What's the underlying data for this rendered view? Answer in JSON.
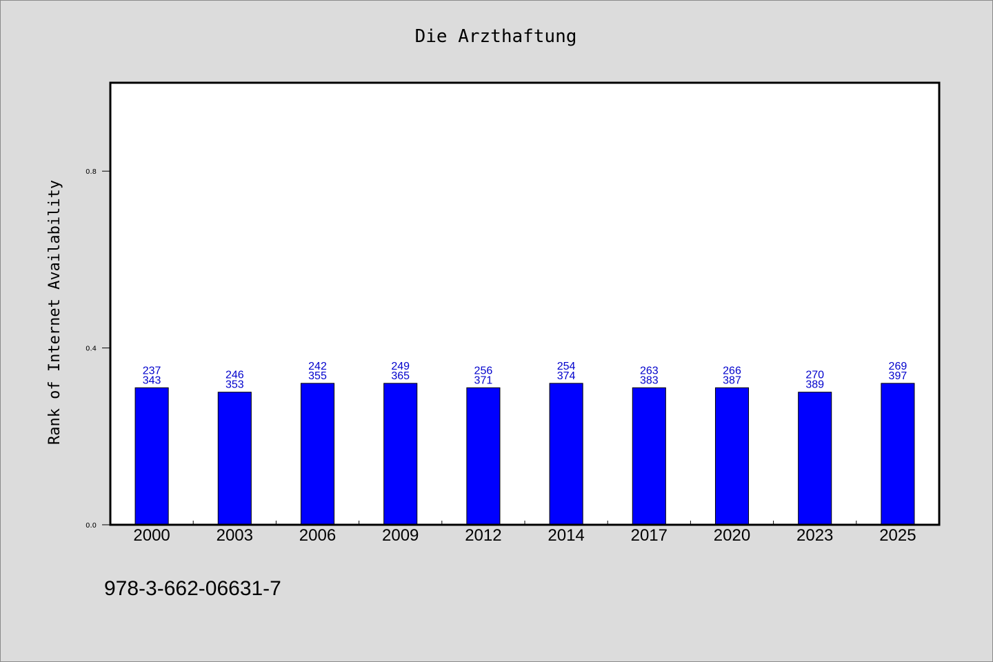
{
  "chart_data": {
    "type": "bar",
    "title": "Die Arzthaftung",
    "xlabel": "",
    "ylabel": "Rank of Internet Availability",
    "categories": [
      "2000",
      "2003",
      "2006",
      "2009",
      "2012",
      "2014",
      "2017",
      "2020",
      "2023",
      "2025"
    ],
    "series": [
      {
        "values": [
          0.31,
          0.3,
          0.32,
          0.32,
          0.31,
          0.32,
          0.31,
          0.31,
          0.3,
          0.32
        ]
      }
    ],
    "labels_top": [
      "237",
      "246",
      "242",
      "249",
      "256",
      "254",
      "263",
      "266",
      "270",
      "269"
    ],
    "labels_bottom": [
      "343",
      "353",
      "355",
      "365",
      "371",
      "374",
      "383",
      "387",
      "389",
      "397"
    ],
    "ylim": [
      0,
      1
    ],
    "yticks": [
      0.0,
      0.4,
      0.8
    ],
    "ytick_labels": [
      "0.0",
      "0.4",
      "0.8"
    ],
    "grid": false,
    "bar_color": "#0000ff",
    "label_color": "#0000cc"
  },
  "footer_text": "978-3-662-06631-7"
}
